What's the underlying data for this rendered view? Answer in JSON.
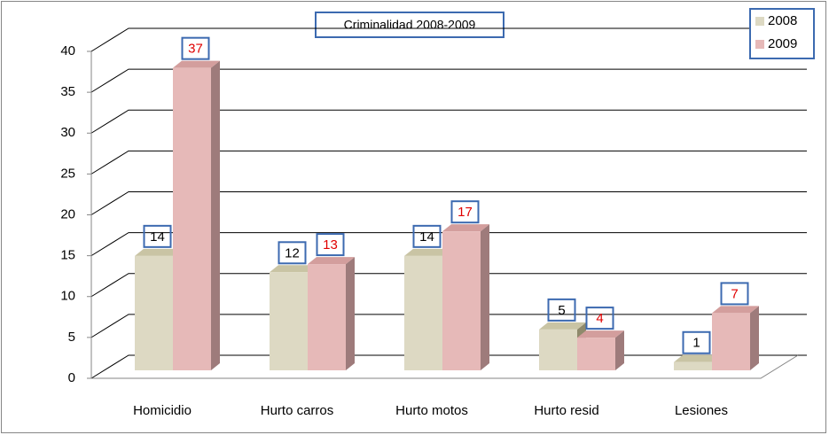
{
  "chart_data": {
    "type": "bar",
    "title": "Criminalidad 2008-2009",
    "categories": [
      "Homicidio",
      "Hurto carros",
      "Hurto motos",
      "Hurto resid",
      "Lesiones"
    ],
    "series": [
      {
        "name": "2008",
        "color": "#ddd9c3",
        "values": [
          14,
          12,
          14,
          5,
          1
        ]
      },
      {
        "name": "2009",
        "color": "#e6b9b8",
        "values": [
          37,
          13,
          17,
          4,
          7
        ]
      }
    ],
    "ylim": [
      0,
      40
    ],
    "yticks": [
      0,
      5,
      10,
      15,
      20,
      25,
      30,
      35,
      40
    ],
    "grid": true,
    "legend": "top-right"
  }
}
